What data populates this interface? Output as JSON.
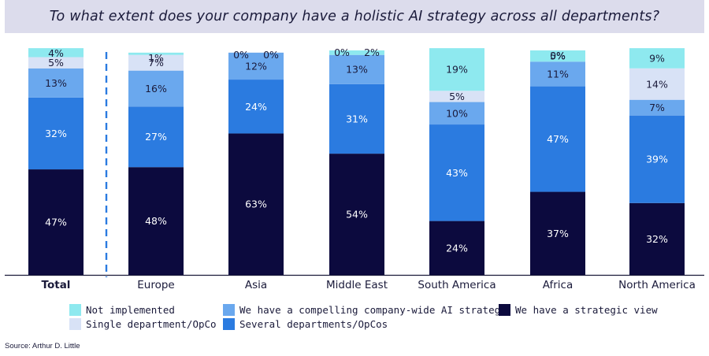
{
  "title": "To what extent does your company have a holistic AI strategy across all departments?",
  "source": "Source: Arthur D. Little",
  "colors": {
    "strategic_view": "#0c0a3e",
    "several_departments": "#2b7be0",
    "compelling_strategy": "#6aa8ee",
    "single_department": "#d8e2f6",
    "not_implemented": "#8ee9ef"
  },
  "chart_data": {
    "type": "bar",
    "stacked": true,
    "categories": [
      "Total",
      "Europe",
      "Asia",
      "Middle East",
      "South America",
      "Africa",
      "North America"
    ],
    "ylim": [
      0,
      100
    ],
    "grid": false,
    "legend_position": "bottom",
    "series": [
      {
        "name": "We have a strategic view",
        "key": "strategic_view",
        "values": [
          47,
          48,
          63,
          54,
          24,
          37,
          32
        ]
      },
      {
        "name": "Several departments/OpCos",
        "key": "several_departments",
        "values": [
          32,
          27,
          24,
          31,
          43,
          47,
          39
        ]
      },
      {
        "name": "We have a compelling company-wide AI strategy",
        "key": "compelling_strategy",
        "values": [
          13,
          16,
          12,
          13,
          10,
          11,
          7
        ]
      },
      {
        "name": "Single department/OpCo",
        "key": "single_department",
        "values": [
          5,
          7,
          0,
          0,
          5,
          0,
          14
        ]
      },
      {
        "name": "Not implemented",
        "key": "not_implemented",
        "values": [
          4,
          1,
          0,
          2,
          19,
          5,
          9
        ]
      }
    ],
    "legend": [
      {
        "name": "Not implemented",
        "key": "not_implemented"
      },
      {
        "name": "We have a compelling company-wide AI strategy",
        "key": "compelling_strategy"
      },
      {
        "name": "We have a strategic view",
        "key": "strategic_view"
      },
      {
        "name": "Single department/OpCo",
        "key": "single_department"
      },
      {
        "name": "Several departments/OpCos",
        "key": "several_departments"
      }
    ]
  }
}
